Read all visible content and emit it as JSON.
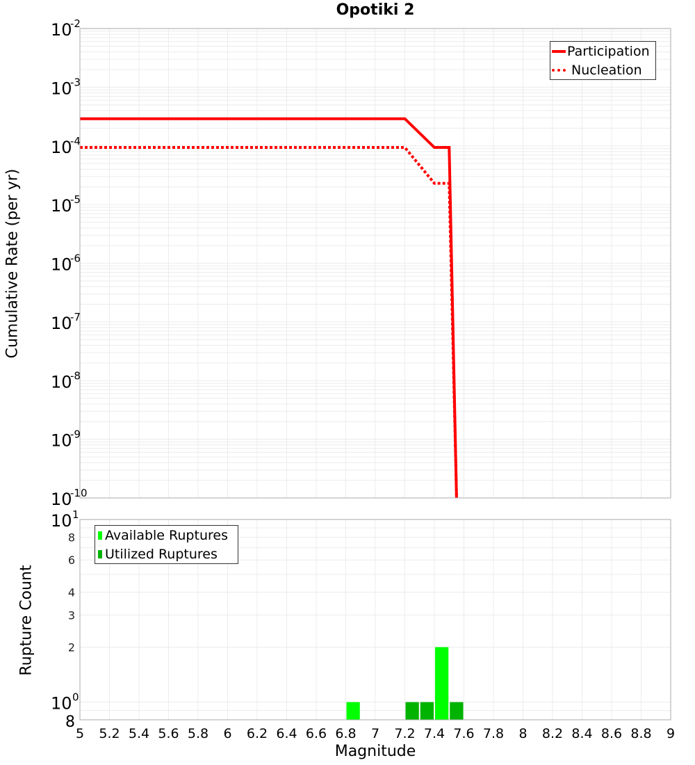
{
  "title": "Opotiki 2",
  "chart_data": [
    {
      "type": "line",
      "title": "Opotiki 2",
      "xlabel": "Magnitude",
      "ylabel": "Cumulative Rate (per yr)",
      "yscale": "log",
      "xlim": [
        5,
        9
      ],
      "ylim": [
        1e-10,
        0.01
      ],
      "y_ticks": [
        "10^-2",
        "10^-3",
        "10^-4",
        "10^-5",
        "10^-6",
        "10^-7",
        "10^-8",
        "10^-9",
        "10^-10"
      ],
      "grid": true,
      "legend_position": "upper right",
      "series": [
        {
          "name": "Participation",
          "style": "solid",
          "color": "#ff0000",
          "x": [
            5.0,
            7.2,
            7.4,
            7.5,
            7.55
          ],
          "y": [
            0.00029,
            0.00029,
            9.4e-05,
            9.4e-05,
            1e-10
          ]
        },
        {
          "name": "Nucleation",
          "style": "dotted",
          "color": "#ff0000",
          "x": [
            5.0,
            7.2,
            7.4,
            7.5,
            7.55
          ],
          "y": [
            9.4e-05,
            9.4e-05,
            2.3e-05,
            2.3e-05,
            1e-10
          ]
        }
      ]
    },
    {
      "type": "bar",
      "xlabel": "Magnitude",
      "ylabel": "Rupture Count",
      "yscale": "log",
      "xlim": [
        5,
        9
      ],
      "ylim": [
        0.8,
        10
      ],
      "x_ticks": [
        "5",
        "5.2",
        "5.4",
        "5.6",
        "5.8",
        "6",
        "6.2",
        "6.4",
        "6.6",
        "6.8",
        "7",
        "7.2",
        "7.4",
        "7.6",
        "7.8",
        "8",
        "8.2",
        "8.4",
        "8.6",
        "8.8",
        "9"
      ],
      "y_ticks": [
        "8",
        "10^0",
        "2",
        "3",
        "4",
        "6",
        "8",
        "10^1"
      ],
      "grid": true,
      "legend_position": "upper left",
      "bin_width": 0.1,
      "series": [
        {
          "name": "Available Ruptures",
          "color": "#00ff00",
          "x": [
            6.85,
            7.45
          ],
          "values": [
            1,
            2
          ]
        },
        {
          "name": "Utilized Ruptures",
          "color": "#00b300",
          "x": [
            7.25,
            7.35,
            7.55
          ],
          "values": [
            1,
            1,
            1
          ]
        }
      ]
    }
  ],
  "labels": {
    "top_ylabel": "Cumulative Rate (per yr)",
    "bottom_ylabel": "Rupture Count",
    "xlabel": "Magnitude",
    "legend_top": [
      "Participation",
      "Nucleation"
    ],
    "legend_bottom": [
      "Available Ruptures",
      "Utilized Ruptures"
    ]
  }
}
